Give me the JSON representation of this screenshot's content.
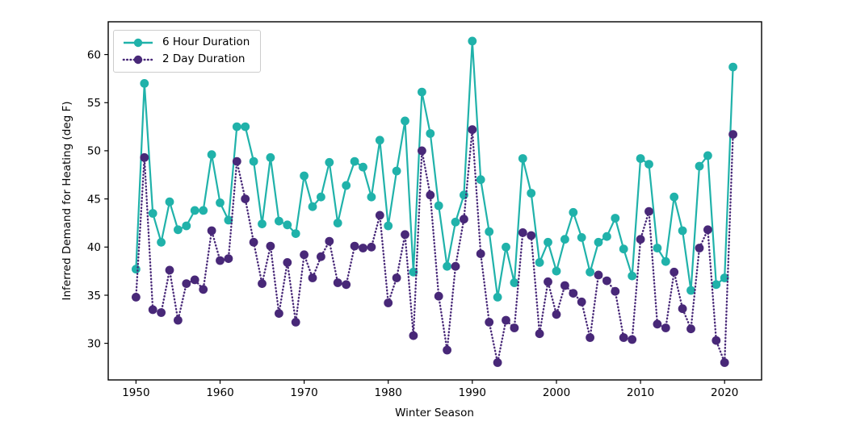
{
  "chart_data": {
    "type": "line",
    "title": "",
    "xlabel": "Winter Season",
    "ylabel": "Inferred Demand for Heating (deg F)",
    "xlim": [
      1946.7,
      2024.4
    ],
    "ylim": [
      26.2,
      63.4
    ],
    "xticks": [
      1950,
      1960,
      1970,
      1980,
      1990,
      2000,
      2010,
      2020
    ],
    "yticks": [
      30,
      35,
      40,
      45,
      50,
      55,
      60
    ],
    "grid": false,
    "legend_position": "upper left",
    "x": [
      1950,
      1951,
      1952,
      1953,
      1954,
      1955,
      1956,
      1957,
      1958,
      1959,
      1960,
      1961,
      1962,
      1963,
      1964,
      1965,
      1966,
      1967,
      1968,
      1969,
      1970,
      1971,
      1972,
      1973,
      1974,
      1975,
      1976,
      1977,
      1978,
      1979,
      1980,
      1981,
      1982,
      1983,
      1984,
      1985,
      1986,
      1987,
      1988,
      1989,
      1990,
      1991,
      1992,
      1993,
      1994,
      1995,
      1996,
      1997,
      1998,
      1999,
      2000,
      2001,
      2002,
      2003,
      2004,
      2005,
      2006,
      2007,
      2008,
      2009,
      2010,
      2011,
      2012,
      2013,
      2014,
      2015,
      2016,
      2017,
      2018,
      2019,
      2020,
      2021
    ],
    "series": [
      {
        "name": "6 Hour Duration",
        "color": "#20b2aa",
        "line_style": "solid",
        "marker": "circle",
        "values": [
          37.7,
          57.0,
          43.5,
          40.5,
          44.7,
          41.8,
          42.2,
          43.8,
          43.8,
          49.6,
          44.6,
          42.8,
          52.5,
          52.5,
          48.9,
          42.4,
          49.3,
          42.7,
          42.3,
          41.4,
          47.4,
          44.2,
          45.2,
          48.8,
          42.5,
          46.4,
          48.9,
          48.3,
          45.2,
          51.1,
          42.2,
          47.9,
          53.1,
          37.4,
          56.1,
          51.8,
          44.3,
          38.0,
          42.6,
          45.4,
          61.4,
          47.0,
          41.6,
          34.8,
          40.0,
          36.3,
          49.2,
          45.6,
          38.4,
          40.5,
          37.5,
          40.8,
          43.6,
          41.0,
          37.4,
          40.5,
          41.1,
          43.0,
          39.8,
          37.0,
          49.2,
          48.6,
          39.9,
          38.5,
          45.2,
          41.7,
          35.5,
          48.4,
          49.5,
          36.1,
          36.8,
          58.7
        ]
      },
      {
        "name": "2 Day Duration",
        "color": "#482878",
        "line_style": "dotted",
        "marker": "circle",
        "values": [
          34.8,
          49.3,
          33.5,
          33.2,
          37.6,
          32.4,
          36.2,
          36.6,
          35.6,
          41.7,
          38.6,
          38.8,
          48.9,
          45.0,
          40.5,
          36.2,
          40.1,
          33.1,
          38.4,
          32.2,
          39.2,
          36.8,
          39.0,
          40.6,
          36.3,
          36.1,
          40.1,
          39.9,
          40.0,
          43.3,
          34.2,
          36.8,
          41.3,
          30.8,
          50.0,
          45.4,
          34.9,
          29.3,
          38.0,
          42.9,
          52.2,
          39.3,
          32.2,
          28.0,
          32.4,
          31.6,
          41.5,
          41.2,
          31.0,
          36.4,
          33.0,
          36.0,
          35.2,
          34.3,
          30.6,
          37.1,
          36.5,
          35.4,
          30.6,
          30.4,
          40.8,
          43.7,
          32.0,
          31.6,
          37.4,
          33.6,
          31.5,
          39.9,
          41.8,
          30.3,
          28.0,
          51.7
        ]
      }
    ]
  }
}
